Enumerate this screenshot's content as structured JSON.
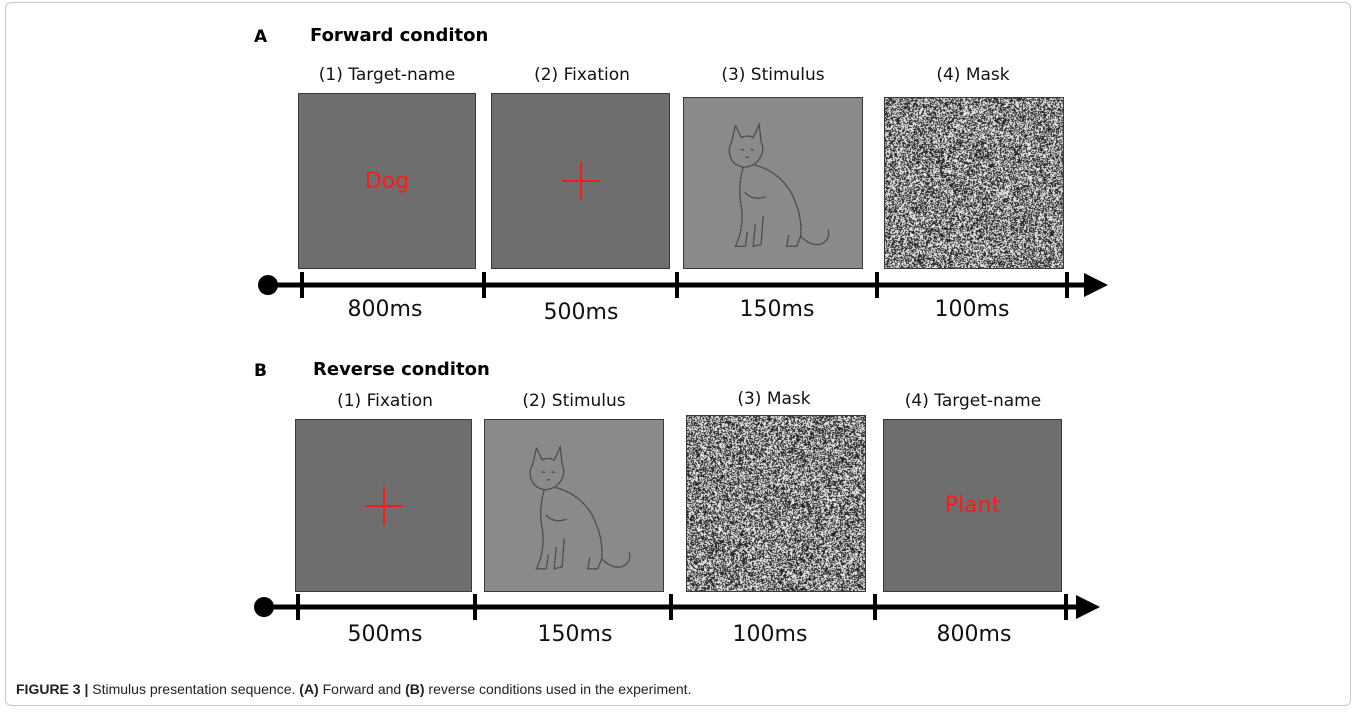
{
  "panels": [
    {
      "letter": "A",
      "title": "Forward conditon",
      "steps": [
        {
          "label": "(1) Target-name",
          "content": "word",
          "word": "Dog",
          "duration": "800ms"
        },
        {
          "label": "(2) Fixation",
          "content": "cross",
          "duration": "500ms"
        },
        {
          "label": "(3) Stimulus",
          "content": "cat-drawing",
          "duration": "150ms"
        },
        {
          "label": "(4) Mask",
          "content": "noise",
          "duration": "100ms"
        }
      ]
    },
    {
      "letter": "B",
      "title": "Reverse conditon",
      "steps": [
        {
          "label": "(1) Fixation",
          "content": "cross",
          "duration": "500ms"
        },
        {
          "label": "(2) Stimulus",
          "content": "cat-drawing",
          "duration": "150ms"
        },
        {
          "label": "(3) Mask",
          "content": "noise",
          "duration": "100ms"
        },
        {
          "label": "(4) Target-name",
          "content": "word",
          "word": "Plant",
          "duration": "800ms"
        }
      ]
    }
  ],
  "caption": {
    "figure": "FIGURE 3 |",
    "text_1": " Stimulus presentation sequence. ",
    "a": "(A)",
    "text_2": " Forward and ",
    "b": "(B)",
    "text_3": " reverse conditions used in the experiment."
  },
  "colors": {
    "target_word": "#ff1a1a",
    "screen_dark": "#6e6e6e",
    "screen_light": "#8a8a8a"
  }
}
